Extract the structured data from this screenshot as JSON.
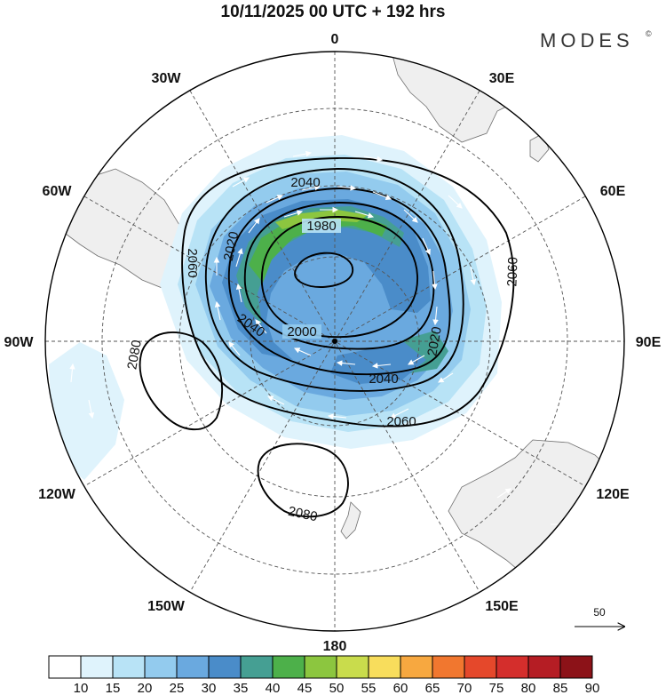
{
  "title": "10/11/2025  00 UTC  + 192 hrs",
  "brand": {
    "text": "MODES",
    "mark": "©"
  },
  "projection": "polar stereographic (south pole)",
  "meridian_labels": {
    "lon_0": "0",
    "lon_30w": "30W",
    "lon_30e": "30E",
    "lon_60w": "60W",
    "lon_60e": "60E",
    "lon_90w": "90W",
    "lon_90e": "90E",
    "lon_120w": "120W",
    "lon_120e": "120E",
    "lon_150w": "150W",
    "lon_150e": "150E",
    "lon_180": "180"
  },
  "contours": {
    "c1980": "1980",
    "c2000": "2000",
    "c2020a": "2020",
    "c2020b": "2020",
    "c2040a": "2040",
    "c2040b": "2040",
    "c2040c": "2040",
    "c2060a": "2060",
    "c2060b": "2060",
    "c2060c": "2060",
    "c2080a": "2080",
    "c2080b": "2080"
  },
  "vector_reference": {
    "value": "50"
  },
  "colorbar": {
    "labels": [
      "10",
      "15",
      "20",
      "25",
      "30",
      "35",
      "40",
      "45",
      "50",
      "55",
      "60",
      "65",
      "70",
      "75",
      "80",
      "85",
      "90"
    ],
    "colors": [
      "#ffffff",
      "#dff3fc",
      "#b8e3f6",
      "#93cbee",
      "#6aa9df",
      "#4a8cc9",
      "#459f93",
      "#4db04a",
      "#8cc63f",
      "#c9dc4c",
      "#f8dd5c",
      "#f7a840",
      "#f1772f",
      "#e5482b",
      "#d42e2c",
      "#b51d24",
      "#8c1218"
    ]
  },
  "colors": {
    "land": "#efefef",
    "coast": "#6f6f6f",
    "grid": "#555555",
    "contour": "#000000",
    "arrow": "#ffffff"
  }
}
